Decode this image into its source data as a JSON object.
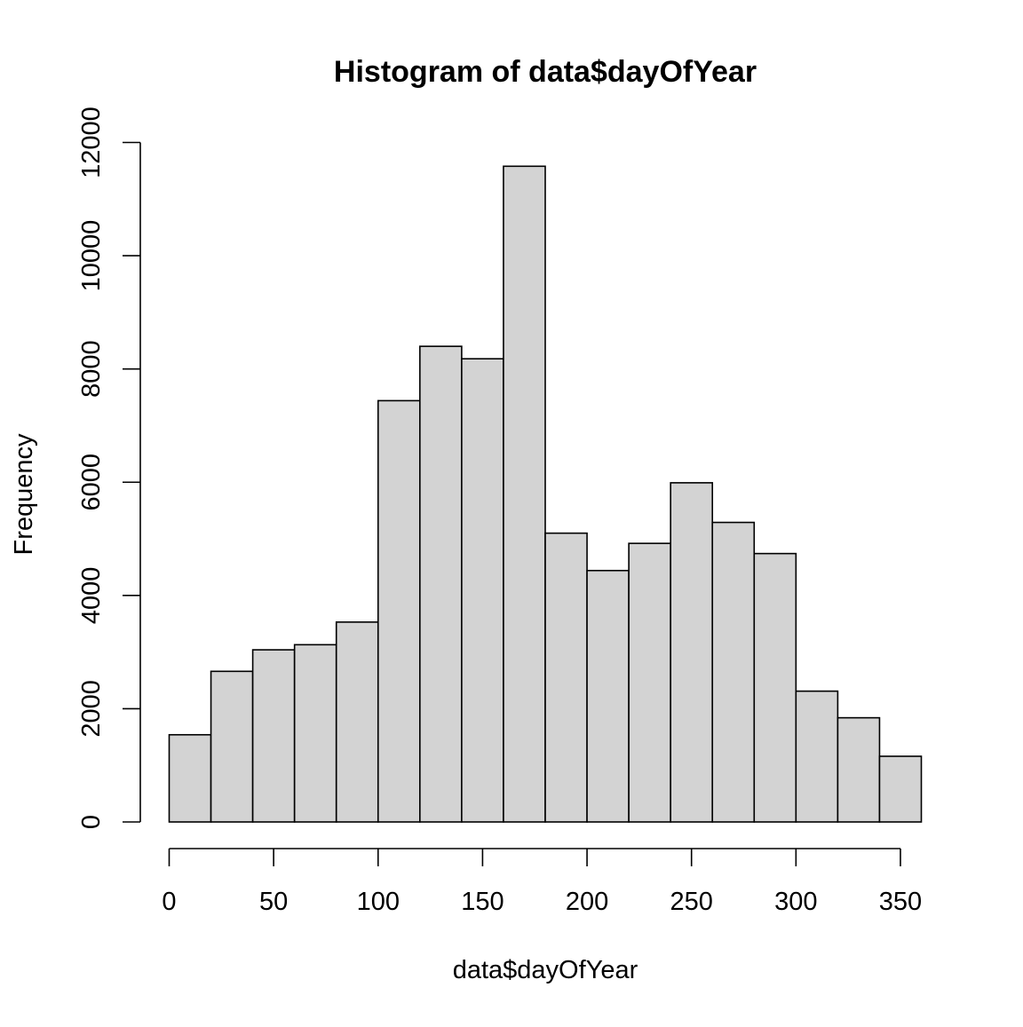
{
  "chart_data": {
    "type": "bar",
    "subtype": "histogram",
    "title": "Histogram of data$dayOfYear",
    "xlabel": "data$dayOfYear",
    "ylabel": "Frequency",
    "bin_edges": [
      0,
      20,
      40,
      60,
      80,
      100,
      120,
      140,
      160,
      180,
      200,
      220,
      240,
      260,
      280,
      300,
      320,
      340,
      360
    ],
    "values": [
      1540,
      2660,
      3040,
      3130,
      3530,
      7440,
      8400,
      8180,
      11580,
      5100,
      4440,
      4920,
      5990,
      5290,
      4740,
      2310,
      1840,
      1160
    ],
    "xlim": [
      0,
      360
    ],
    "ylim": [
      0,
      12000
    ],
    "x_ticks": [
      0,
      50,
      100,
      150,
      200,
      250,
      300,
      350
    ],
    "y_ticks": [
      0,
      2000,
      4000,
      6000,
      8000,
      10000,
      12000
    ],
    "x_tick_labels": [
      "0",
      "50",
      "100",
      "150",
      "200",
      "250",
      "300",
      "350"
    ],
    "y_tick_labels": [
      "0",
      "2000",
      "4000",
      "6000",
      "8000",
      "10000",
      "12000"
    ],
    "bar_color": "#d3d3d3",
    "edge_color": "#000000",
    "grid": false,
    "legend": "none"
  }
}
